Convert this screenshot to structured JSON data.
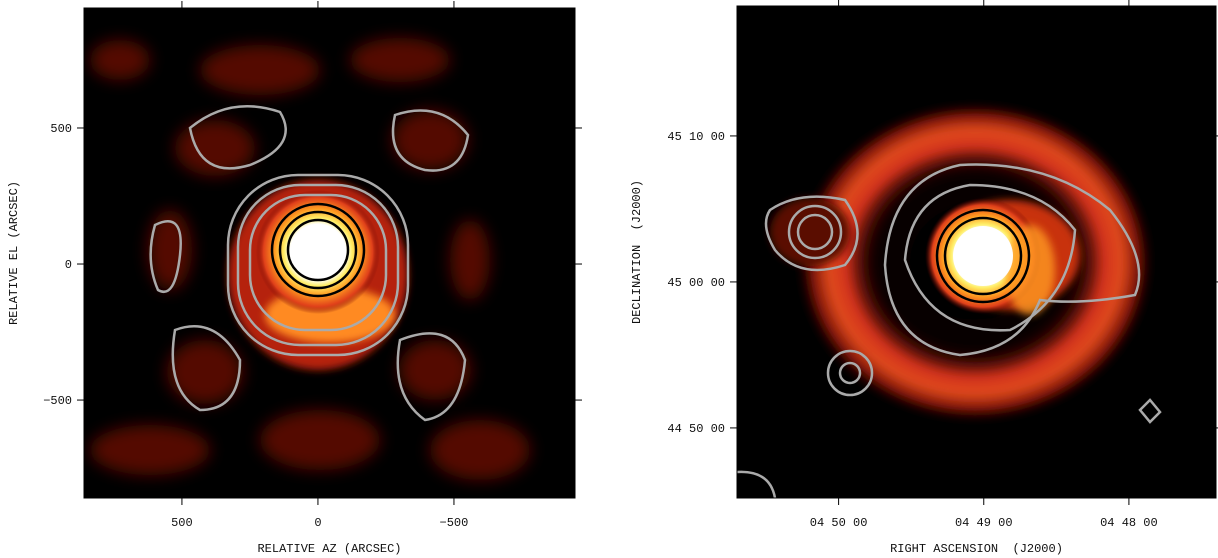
{
  "chart_data": [
    {
      "type": "image",
      "xlabel": "RELATIVE AZ (ARCSEC)",
      "ylabel": "RELATIVE EL (ARCSEC)",
      "xlim": [
        860,
        -945
      ],
      "ylim": [
        -860,
        941
      ],
      "xticks": [
        500,
        0,
        {
          "value": -500,
          "label": "−500"
        }
      ],
      "yticks": [
        500,
        0,
        {
          "value": -500,
          "label": "−500"
        }
      ]
    },
    {
      "type": "image",
      "xlabel": "RIGHT ASCENSION  (J2000)",
      "ylabel": "DECLINATION  (J2000)",
      "xlim": [
        17442,
        17244
      ],
      "ylim": [
        161112,
        163134
      ],
      "xticks": [
        {
          "value": 17400,
          "label": "04 50 00"
        },
        {
          "value": 17340,
          "label": "04 49 00"
        },
        {
          "value": 17280,
          "label": "04 48 00"
        }
      ],
      "yticks": [
        {
          "value": 162600,
          "label": "45 10 00"
        },
        {
          "value": 162000,
          "label": "45 00 00"
        },
        {
          "value": 161400,
          "label": "44 50 00"
        }
      ]
    }
  ]
}
